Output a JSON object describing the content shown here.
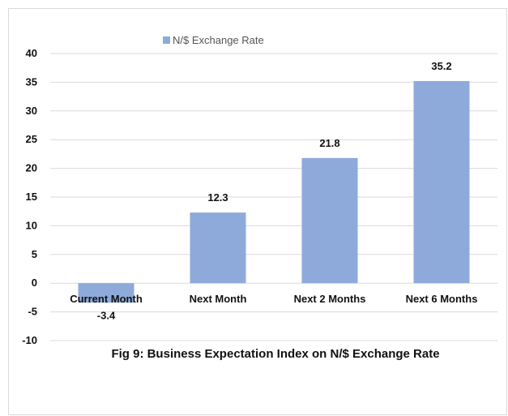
{
  "chart_data": {
    "type": "bar",
    "categories": [
      "Current Month",
      "Next Month",
      "Next 2 Months",
      "Next 6 Months"
    ],
    "series": [
      {
        "name": "N/$ Exchange Rate",
        "values": [
          -3.4,
          12.3,
          21.8,
          35.2
        ],
        "color": "#8eaadb"
      }
    ],
    "data_labels": [
      "-3.4",
      "12.3",
      "21.8",
      "35.2"
    ],
    "yticks": [
      "40",
      "35",
      "30",
      "25",
      "20",
      "15",
      "10",
      "5",
      "0",
      "-5",
      "-10"
    ],
    "ylim": [
      -10,
      40
    ],
    "grid": true,
    "legend_position": "top",
    "caption": "Fig 9: Business Expectation Index on N/$ Exchange Rate"
  }
}
